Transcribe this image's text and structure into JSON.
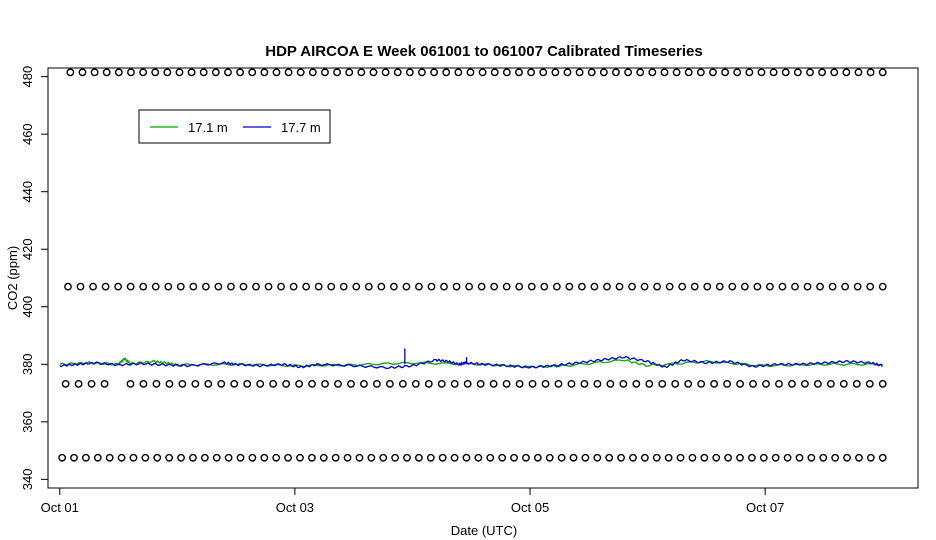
{
  "chart_data": {
    "type": "line",
    "title": "HDP AIRCOA E  Week 061001 to 061007  Calibrated Timeseries",
    "xlabel": "Date (UTC)",
    "ylabel": "CO2 (ppm)",
    "x_ticks": [
      "Oct 01",
      "Oct 03",
      "Oct 05",
      "Oct 07"
    ],
    "x_tick_values": [
      0,
      2,
      4,
      6
    ],
    "xlim": [
      -0.1,
      7.3
    ],
    "y_ticks": [
      340,
      360,
      380,
      400,
      420,
      440,
      460,
      480
    ],
    "ylim": [
      337,
      483
    ],
    "grid": false,
    "legend": {
      "placement": "top-left",
      "entries": [
        {
          "name": "17.1 m",
          "color": "#00aa00"
        },
        {
          "name": "17.7 m",
          "color": "#0000cc"
        }
      ]
    },
    "series": [
      {
        "name": "17.1 m",
        "color": "#00aa00",
        "x": [
          0.0,
          0.25,
          0.5,
          0.55,
          0.6,
          0.8,
          0.9,
          1.0,
          1.5,
          2.0,
          2.5,
          3.0,
          3.6,
          4.0,
          4.3,
          4.8,
          5.0,
          5.5,
          6.0,
          6.5,
          7.0
        ],
        "y": [
          380.0,
          380.5,
          380.0,
          382.0,
          380.2,
          381.0,
          380.5,
          379.8,
          380.0,
          379.5,
          379.8,
          380.5,
          380.0,
          379.0,
          379.5,
          381.5,
          379.5,
          381.0,
          379.5,
          380.0,
          380.0
        ]
      },
      {
        "name": "17.7 m",
        "color": "#0000cc",
        "x": [
          0.0,
          0.15,
          0.3,
          0.5,
          0.7,
          0.9,
          1.1,
          1.4,
          1.5,
          1.7,
          1.9,
          2.05,
          2.2,
          2.5,
          2.8,
          3.0,
          3.2,
          3.3,
          3.4,
          3.45,
          3.6,
          3.8,
          4.0,
          4.2,
          4.4,
          4.6,
          4.8,
          5.0,
          5.15,
          5.3,
          5.5,
          5.7,
          5.9,
          6.1,
          6.3,
          6.5,
          6.7,
          6.9,
          7.0
        ],
        "y": [
          379.5,
          380.0,
          380.5,
          379.8,
          380.2,
          379.8,
          379.5,
          380.5,
          380.0,
          379.5,
          380.0,
          379.0,
          380.0,
          379.5,
          378.8,
          379.5,
          381.5,
          381.0,
          380.0,
          380.5,
          380.0,
          379.5,
          379.0,
          379.5,
          380.5,
          381.5,
          382.5,
          381.0,
          379.0,
          381.5,
          380.5,
          381.0,
          379.2,
          380.0,
          380.0,
          380.5,
          381.0,
          380.5,
          379.5
        ]
      }
    ],
    "spikes": [
      {
        "x": 2.935,
        "y_from": 380,
        "y_to": 385.5,
        "color": "#0000cc"
      },
      {
        "x": 3.46,
        "y_from": 380,
        "y_to": 382.5,
        "color": "#0000cc"
      }
    ],
    "marker_rows": [
      {
        "y": 481.5,
        "x_start": 0.09,
        "x_end": 7.0,
        "count": 68
      },
      {
        "y": 407,
        "x_start": 0.07,
        "x_end": 7.0,
        "count": 66
      },
      {
        "y": 373.2,
        "x_start": 0.05,
        "x_end": 7.0,
        "count": 64,
        "gaps": [
          [
            0.42,
            0.58
          ]
        ]
      },
      {
        "y": 347.5,
        "x_start": 0.02,
        "x_end": 7.0,
        "count": 70
      }
    ]
  }
}
